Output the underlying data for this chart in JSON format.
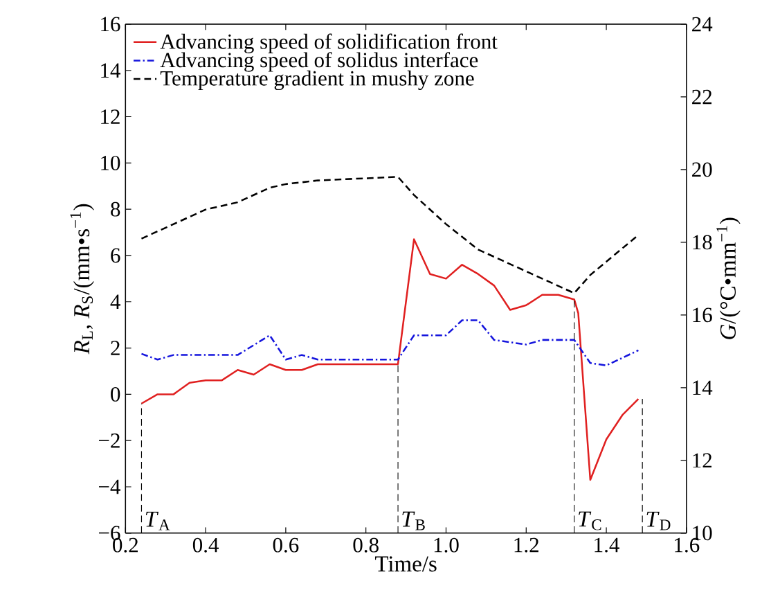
{
  "chart_data": {
    "type": "line",
    "xlabel": "Time/s",
    "ylabel": "*R*$_{L}$, *R*$_{S}$/(mm•s$^{−1}$)",
    "y2label": "*G*/(°C•mm$^{−1}$)",
    "xlim": [
      0.2,
      1.6
    ],
    "xticks": [
      0.2,
      0.4,
      0.6,
      0.8,
      {
        "value": 1.0,
        "label": "1.0"
      },
      1.2,
      1.4,
      1.6
    ],
    "ylim": [
      -6,
      16
    ],
    "yticks": [
      {
        "value": -6,
        "label": "−6"
      },
      {
        "value": -4,
        "label": "−4"
      },
      {
        "value": -2,
        "label": "−2"
      },
      0,
      2,
      4,
      6,
      8,
      10,
      12,
      14,
      16
    ],
    "y2lim": [
      10,
      24
    ],
    "y2ticks": [
      10,
      12,
      14,
      16,
      18,
      20,
      22,
      24
    ],
    "legend": "top left",
    "grid": false,
    "marker": "none",
    "series": [
      {
        "name": "Advancing speed of solidification front",
        "color": "#e02020",
        "line_style": "solid",
        "x": [
          0.24,
          0.28,
          0.32,
          0.36,
          0.4,
          0.44,
          0.48,
          0.52,
          0.56,
          0.6,
          0.64,
          0.68,
          0.88,
          0.92,
          0.96,
          1.0,
          1.04,
          1.08,
          1.12,
          1.16,
          1.2,
          1.24,
          1.28,
          1.32,
          1.33,
          1.36,
          1.4,
          1.44,
          1.48
        ],
        "values": [
          -0.4,
          0,
          0,
          0.5,
          0.6,
          0.6,
          1.05,
          0.85,
          1.3,
          1.05,
          1.05,
          1.3,
          1.3,
          6.7,
          5.2,
          5.0,
          5.6,
          5.2,
          4.7,
          3.65,
          3.85,
          4.3,
          4.3,
          4.1,
          3.5,
          -3.7,
          -1.95,
          -0.9,
          -0.2
        ]
      },
      {
        "name": "Advancing speed of solidus interface",
        "color": "#1515dd",
        "line_style": "dashdot",
        "x": [
          0.24,
          0.28,
          0.32,
          0.48,
          0.56,
          0.6,
          0.64,
          0.68,
          0.88,
          0.92,
          1.0,
          1.04,
          1.08,
          1.12,
          1.2,
          1.24,
          1.32,
          1.36,
          1.4,
          1.48
        ],
        "values": [
          1.75,
          1.5,
          1.7,
          1.7,
          2.55,
          1.5,
          1.7,
          1.5,
          1.5,
          2.55,
          2.55,
          3.2,
          3.2,
          2.35,
          2.15,
          2.35,
          2.35,
          1.35,
          1.25,
          1.9
        ]
      },
      {
        "name": "Temperature gradient in mushy zone",
        "color": "#000000",
        "line_style": "dashed",
        "axis": "y2",
        "x": [
          0.24,
          0.32,
          0.4,
          0.48,
          0.56,
          0.6,
          0.68,
          0.88,
          0.92,
          1.0,
          1.08,
          1.16,
          1.24,
          1.32,
          1.36,
          1.48
        ],
        "values": [
          18.1,
          18.5,
          18.9,
          19.1,
          19.5,
          19.6,
          19.7,
          19.8,
          19.3,
          18.5,
          17.8,
          17.4,
          17.0,
          16.6,
          17.1,
          18.2
        ]
      }
    ],
    "ref_lines": [
      {
        "axis": "x",
        "value": 0.24,
        "label": "*T*$_{A}$",
        "line_style": "dashed",
        "color": "#000000"
      },
      {
        "axis": "x",
        "value": 0.88,
        "label": "*T*$_{B}$",
        "line_style": "dashed",
        "color": "#000000"
      },
      {
        "axis": "x",
        "value": 1.32,
        "label": "*T*$_{C}$",
        "line_style": "dashed",
        "color": "#000000"
      },
      {
        "axis": "x",
        "value": 1.49,
        "label": "*T*$_{D}$",
        "line_style": "dashed",
        "color": "#000000"
      }
    ]
  }
}
